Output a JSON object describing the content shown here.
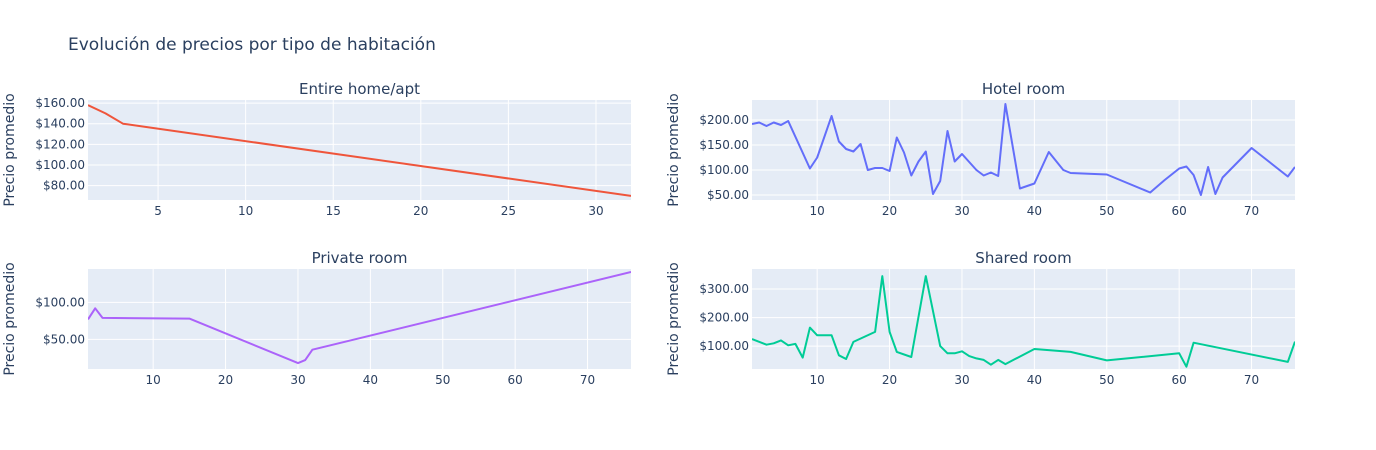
{
  "title": "Evolución de precios por tipo de habitación",
  "colors": {
    "plot_bg": "#e5ecf6",
    "grid": "#ffffff",
    "text": "#2a3f5f"
  },
  "chart_data": [
    {
      "type": "line",
      "title": "Entire home/apt",
      "ylabel": "Precio promedio",
      "xlabel": "",
      "color": "#ef553b",
      "xlim": [
        1,
        32
      ],
      "ylim": [
        66,
        163
      ],
      "xticks": [
        5,
        10,
        15,
        20,
        25,
        30
      ],
      "yticks": [
        80,
        100,
        120,
        140,
        160
      ],
      "ytick_labels": [
        "$80.00",
        "$100.00",
        "$120.00",
        "$140.00",
        "$160.00"
      ],
      "x": [
        1,
        2,
        3,
        32
      ],
      "y": [
        158,
        150,
        140,
        70
      ]
    },
    {
      "type": "line",
      "title": "Hotel room",
      "ylabel": "Precio promedio",
      "xlabel": "",
      "color": "#636efa",
      "xlim": [
        1,
        76
      ],
      "ylim": [
        40,
        240
      ],
      "xticks": [
        10,
        20,
        30,
        40,
        50,
        60,
        70
      ],
      "yticks": [
        50,
        100,
        150,
        200
      ],
      "ytick_labels": [
        "$50.00",
        "$100.00",
        "$150.00",
        "$200.00"
      ],
      "x": [
        1,
        2,
        3,
        4,
        5,
        6,
        9,
        10,
        12,
        13,
        14,
        15,
        16,
        17,
        18,
        19,
        20,
        21,
        22,
        23,
        24,
        25,
        26,
        27,
        28,
        29,
        30,
        32,
        33,
        34,
        35,
        36,
        38,
        40,
        42,
        44,
        45,
        50,
        56,
        58,
        60,
        61,
        62,
        63,
        64,
        65,
        66,
        70,
        75,
        76
      ],
      "y": [
        192,
        195,
        188,
        195,
        190,
        198,
        103,
        125,
        208,
        157,
        142,
        137,
        152,
        100,
        104,
        104,
        98,
        165,
        135,
        89,
        117,
        137,
        52,
        78,
        178,
        117,
        132,
        100,
        89,
        95,
        88,
        232,
        63,
        73,
        136,
        100,
        94,
        91,
        55,
        80,
        103,
        107,
        90,
        50,
        106,
        52,
        85,
        144,
        87,
        106
      ]
    },
    {
      "type": "line",
      "title": "Private room",
      "ylabel": "Precio promedio",
      "xlabel": "",
      "color": "#ab63fa",
      "xlim": [
        1,
        76
      ],
      "ylim": [
        10,
        145
      ],
      "xticks": [
        10,
        20,
        30,
        40,
        50,
        60,
        70
      ],
      "yticks": [
        50,
        100
      ],
      "ytick_labels": [
        "$50.00",
        "$100.00"
      ],
      "x": [
        1,
        2,
        3,
        15,
        30,
        31,
        32,
        76
      ],
      "y": [
        77,
        92,
        79,
        78,
        18,
        22,
        36,
        141
      ]
    },
    {
      "type": "line",
      "title": "Shared room",
      "ylabel": "Precio promedio",
      "xlabel": "",
      "color": "#00cc96",
      "xlim": [
        1,
        76
      ],
      "ylim": [
        20,
        370
      ],
      "xticks": [
        10,
        20,
        30,
        40,
        50,
        60,
        70
      ],
      "yticks": [
        100,
        200,
        300
      ],
      "ytick_labels": [
        "$100.00",
        "$200.00",
        "$300.00"
      ],
      "x": [
        1,
        3,
        4,
        5,
        6,
        7,
        8,
        9,
        10,
        12,
        13,
        14,
        15,
        18,
        19,
        20,
        21,
        23,
        25,
        27,
        28,
        29,
        30,
        31,
        32,
        33,
        34,
        35,
        36,
        40,
        45,
        50,
        60,
        61,
        62,
        75,
        76
      ],
      "y": [
        125,
        105,
        110,
        120,
        103,
        108,
        60,
        165,
        138,
        138,
        68,
        55,
        115,
        150,
        345,
        150,
        80,
        62,
        345,
        100,
        75,
        75,
        82,
        65,
        57,
        52,
        35,
        52,
        37,
        90,
        80,
        50,
        75,
        28,
        112,
        45,
        116
      ]
    }
  ]
}
